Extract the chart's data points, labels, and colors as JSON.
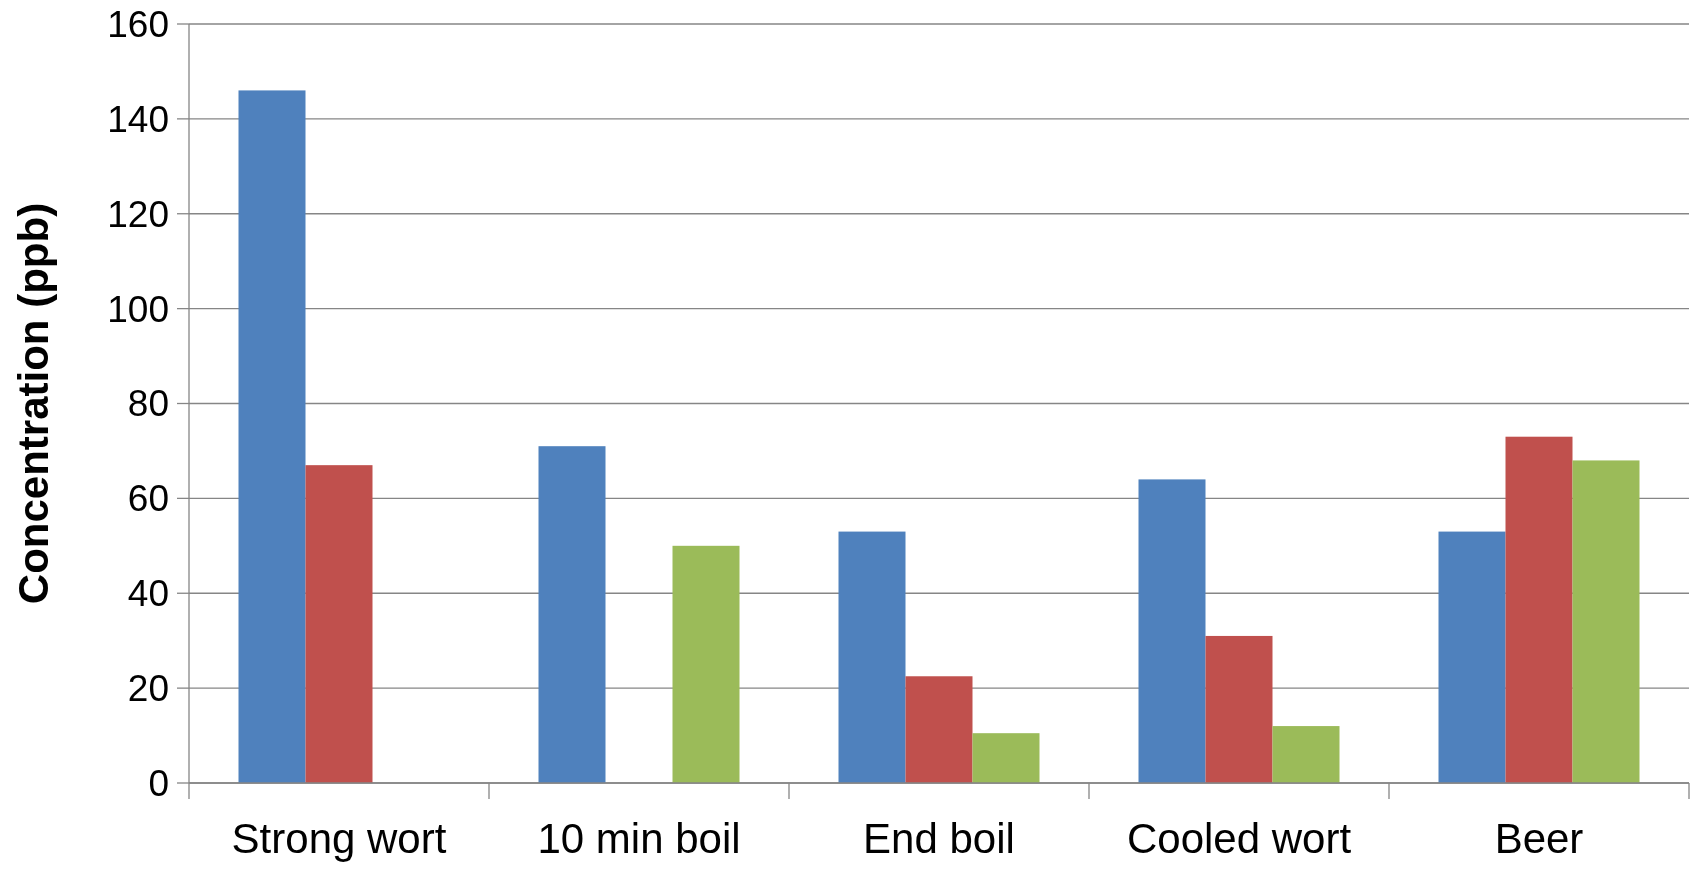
{
  "chart_data": {
    "type": "bar",
    "ylabel": "Concentration (ppb)",
    "categories": [
      "Strong wort",
      "10 min boil",
      "End boil",
      "Cooled wort",
      "Beer"
    ],
    "series": [
      {
        "color": "#4f81bd",
        "values": [
          146,
          71,
          53,
          64,
          53
        ]
      },
      {
        "color": "#c0504d",
        "values": [
          67,
          null,
          22.5,
          31,
          73
        ]
      },
      {
        "color": "#9bbb59",
        "values": [
          null,
          50,
          10.5,
          12,
          68
        ]
      }
    ],
    "ylim": [
      0,
      160
    ],
    "yticks": [
      0,
      20,
      40,
      60,
      80,
      100,
      120,
      140,
      160
    ],
    "grid": "y"
  }
}
